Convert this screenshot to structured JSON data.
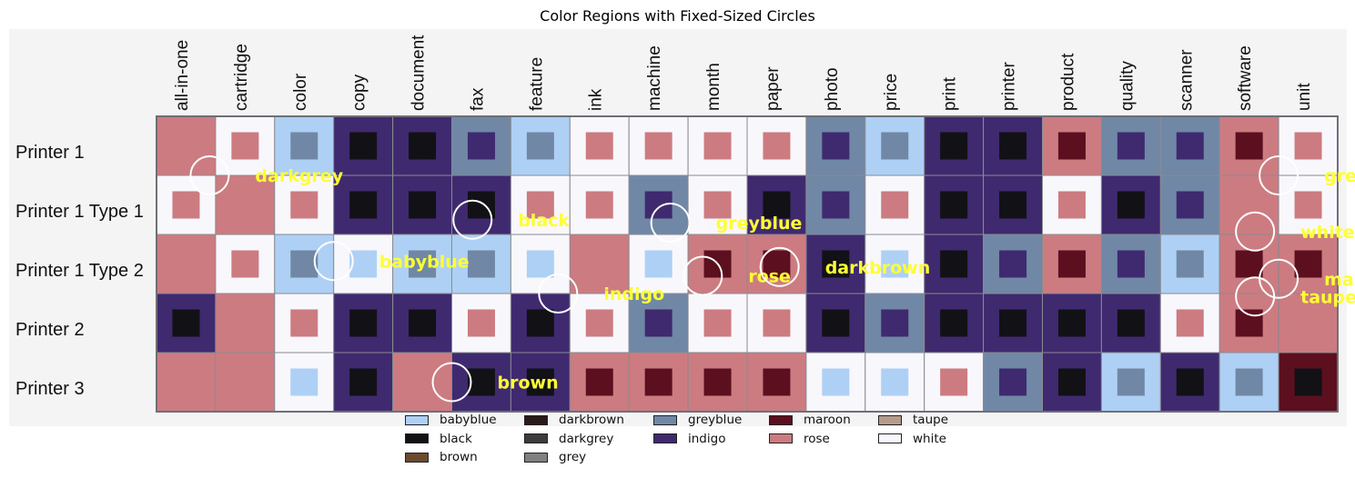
{
  "colors": {
    "babyblue": "#aed0f4",
    "black": "#111116",
    "brown": "#6b4a2e",
    "darkbrown": "#2b1a1a",
    "darkgrey": "#3c3c3c",
    "grey": "#808080",
    "greyblue": "#7088a6",
    "indigo": "#3f2a70",
    "maroon": "#5c0f1f",
    "rose": "#cc7c80",
    "taupe": "#b49b8c",
    "white": "#f8f8fc",
    "background": "#f4f4f4",
    "label": "#ffff33"
  },
  "chart_data": {
    "type": "heatmap",
    "title": "Color Regions with Fixed-Sized Circles",
    "columns": [
      "all-in-one",
      "cartridge",
      "color",
      "copy",
      "document",
      "fax",
      "feature",
      "ink",
      "machine",
      "month",
      "paper",
      "photo",
      "price",
      "print",
      "printer",
      "product",
      "quality",
      "scanner",
      "software",
      "unit"
    ],
    "rows": [
      "Printer 1",
      "Printer 1 Type 1",
      "Printer 1 Type 2",
      "Printer 2",
      "Printer 3"
    ],
    "cells": [
      [
        [
          "rose",
          null
        ],
        [
          "white",
          "rose"
        ],
        [
          "babyblue",
          "greyblue"
        ],
        [
          "indigo",
          "black"
        ],
        [
          "indigo",
          "black"
        ],
        [
          "greyblue",
          "indigo"
        ],
        [
          "babyblue",
          "greyblue"
        ],
        [
          "white",
          "rose"
        ],
        [
          "white",
          "rose"
        ],
        [
          "white",
          "rose"
        ],
        [
          "white",
          "rose"
        ],
        [
          "greyblue",
          "indigo"
        ],
        [
          "babyblue",
          "greyblue"
        ],
        [
          "indigo",
          "black"
        ],
        [
          "indigo",
          "black"
        ],
        [
          "rose",
          "maroon"
        ],
        [
          "greyblue",
          "indigo"
        ],
        [
          "greyblue",
          "indigo"
        ],
        [
          "rose",
          "maroon"
        ],
        [
          "white",
          "rose"
        ]
      ],
      [
        [
          "white",
          "rose"
        ],
        [
          "rose",
          null
        ],
        [
          "white",
          "rose"
        ],
        [
          "indigo",
          "black"
        ],
        [
          "indigo",
          "black"
        ],
        [
          "indigo",
          "black"
        ],
        [
          "white",
          "rose"
        ],
        [
          "white",
          "rose"
        ],
        [
          "greyblue",
          "indigo"
        ],
        [
          "white",
          "rose"
        ],
        [
          "indigo",
          "black"
        ],
        [
          "greyblue",
          "indigo"
        ],
        [
          "white",
          "rose"
        ],
        [
          "indigo",
          "black"
        ],
        [
          "indigo",
          "black"
        ],
        [
          "white",
          "rose"
        ],
        [
          "indigo",
          "black"
        ],
        [
          "greyblue",
          "indigo"
        ],
        [
          "rose",
          null
        ],
        [
          "white",
          "rose"
        ]
      ],
      [
        [
          "rose",
          null
        ],
        [
          "white",
          "rose"
        ],
        [
          "babyblue",
          "greyblue"
        ],
        [
          "white",
          "babyblue"
        ],
        [
          "babyblue",
          "greyblue"
        ],
        [
          "babyblue",
          "greyblue"
        ],
        [
          "white",
          "babyblue"
        ],
        [
          "rose",
          null
        ],
        [
          "white",
          "babyblue"
        ],
        [
          "rose",
          "maroon"
        ],
        [
          "rose",
          "maroon"
        ],
        [
          "indigo",
          "black"
        ],
        [
          "white",
          "babyblue"
        ],
        [
          "indigo",
          "black"
        ],
        [
          "greyblue",
          "indigo"
        ],
        [
          "rose",
          "maroon"
        ],
        [
          "greyblue",
          "indigo"
        ],
        [
          "babyblue",
          "greyblue"
        ],
        [
          "rose",
          "maroon"
        ],
        [
          "rose",
          "maroon"
        ]
      ],
      [
        [
          "indigo",
          "black"
        ],
        [
          "rose",
          null
        ],
        [
          "white",
          "rose"
        ],
        [
          "indigo",
          "black"
        ],
        [
          "indigo",
          "black"
        ],
        [
          "white",
          "rose"
        ],
        [
          "indigo",
          "black"
        ],
        [
          "white",
          "rose"
        ],
        [
          "greyblue",
          "indigo"
        ],
        [
          "white",
          "rose"
        ],
        [
          "white",
          "rose"
        ],
        [
          "indigo",
          "black"
        ],
        [
          "greyblue",
          "indigo"
        ],
        [
          "indigo",
          "black"
        ],
        [
          "indigo",
          "black"
        ],
        [
          "indigo",
          "black"
        ],
        [
          "indigo",
          "black"
        ],
        [
          "white",
          "rose"
        ],
        [
          "rose",
          "maroon"
        ],
        [
          "rose",
          null
        ]
      ],
      [
        [
          "rose",
          null
        ],
        [
          "rose",
          null
        ],
        [
          "white",
          "babyblue"
        ],
        [
          "indigo",
          "black"
        ],
        [
          "rose",
          null
        ],
        [
          "indigo",
          "black"
        ],
        [
          "indigo",
          "black"
        ],
        [
          "rose",
          "maroon"
        ],
        [
          "rose",
          "maroon"
        ],
        [
          "rose",
          "maroon"
        ],
        [
          "rose",
          "maroon"
        ],
        [
          "white",
          "babyblue"
        ],
        [
          "white",
          "babyblue"
        ],
        [
          "white",
          "rose"
        ],
        [
          "greyblue",
          "indigo"
        ],
        [
          "indigo",
          "black"
        ],
        [
          "babyblue",
          "greyblue"
        ],
        [
          "indigo",
          "black"
        ],
        [
          "babyblue",
          "greyblue"
        ],
        [
          "maroon",
          "black"
        ]
      ]
    ],
    "circle_labels": [
      {
        "text": "darkgrey",
        "col": 0.9,
        "row": 1.0
      },
      {
        "text": "black",
        "col": 5.35,
        "row": 1.75
      },
      {
        "text": "greyblue",
        "col": 8.7,
        "row": 1.8
      },
      {
        "text": "babyblue",
        "col": 3.0,
        "row": 2.45
      },
      {
        "text": "indigo",
        "col": 6.8,
        "row": 3.0
      },
      {
        "text": "rose",
        "col": 9.25,
        "row": 2.7
      },
      {
        "text": "darkbrown",
        "col": 10.55,
        "row": 2.55
      },
      {
        "text": "brown",
        "col": 5.0,
        "row": 4.5
      },
      {
        "text": "grey",
        "col": 19.0,
        "row": 1.0
      },
      {
        "text": "white",
        "col": 18.6,
        "row": 1.95
      },
      {
        "text": "maroon",
        "col": 19.0,
        "row": 2.75
      },
      {
        "text": "taupe",
        "col": 18.6,
        "row": 3.05
      }
    ],
    "legend": {
      "placement": "bottom-center",
      "columns": [
        [
          "babyblue",
          "black",
          "brown"
        ],
        [
          "darkbrown",
          "darkgrey",
          "grey"
        ],
        [
          "greyblue",
          "indigo"
        ],
        [
          "maroon",
          "rose"
        ],
        [
          "taupe",
          "white"
        ]
      ]
    }
  }
}
